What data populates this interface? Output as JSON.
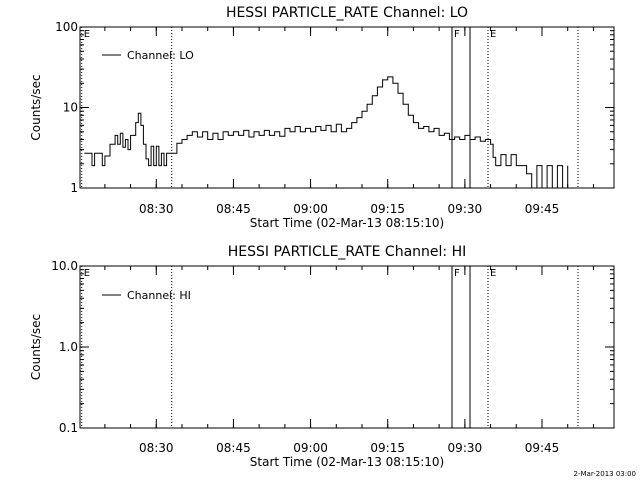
{
  "chart_data": [
    {
      "type": "line",
      "title": "HESSI PARTICLE_RATE Channel: LO",
      "xlabel": "Start Time (02-Mar-13 08:15:10)",
      "ylabel": "Counts/sec",
      "yscale": "log",
      "ylim": [
        1,
        100
      ],
      "xlim": [
        "08:15:10",
        "09:59:00"
      ],
      "x_ticks": [
        "08:30",
        "08:45",
        "09:00",
        "09:15",
        "09:30",
        "09:45"
      ],
      "y_ticks": [
        "1",
        "10",
        "100"
      ],
      "legend": {
        "label": "Channel: LO",
        "placement": "top-left"
      },
      "series": [
        {
          "values": [
            [
              "08:16",
              2.7
            ],
            [
              "08:17",
              2.7
            ],
            [
              "08:17:30",
              1.9
            ],
            [
              "08:18",
              2.7
            ],
            [
              "08:19",
              2.7
            ],
            [
              "08:19:30",
              1.9
            ],
            [
              "08:20",
              2.5
            ],
            [
              "08:21",
              3.5
            ],
            [
              "08:22",
              4.5
            ],
            [
              "08:22:30",
              3.5
            ],
            [
              "08:23",
              4.8
            ],
            [
              "08:23:30",
              3.2
            ],
            [
              "08:24",
              4.0
            ],
            [
              "08:24:30",
              3.0
            ],
            [
              "08:25",
              4.5
            ],
            [
              "08:26",
              6.5
            ],
            [
              "08:26:30",
              8.5
            ],
            [
              "08:27",
              6.0
            ],
            [
              "08:27:30",
              3.5
            ],
            [
              "08:28",
              2.3
            ],
            [
              "08:28:30",
              1.9
            ],
            [
              "08:29",
              3.3
            ],
            [
              "08:29:30",
              1.9
            ],
            [
              "08:30",
              3.3
            ],
            [
              "08:30:30",
              1.9
            ],
            [
              "08:31",
              2.7
            ],
            [
              "08:31:30",
              1.9
            ],
            [
              "08:32",
              2.7
            ],
            [
              "08:33",
              2.7
            ],
            [
              "08:34",
              3.6
            ],
            [
              "08:35",
              4.0
            ],
            [
              "08:36",
              4.5
            ],
            [
              "08:37",
              5.0
            ],
            [
              "08:38",
              4.3
            ],
            [
              "08:39",
              5.0
            ],
            [
              "08:40",
              4.0
            ],
            [
              "08:41",
              4.8
            ],
            [
              "08:42",
              4.0
            ],
            [
              "08:43",
              5.0
            ],
            [
              "08:44",
              4.5
            ],
            [
              "08:45",
              5.0
            ],
            [
              "08:46",
              4.5
            ],
            [
              "08:47",
              5.2
            ],
            [
              "08:48",
              4.3
            ],
            [
              "08:49",
              5.0
            ],
            [
              "08:50",
              4.5
            ],
            [
              "08:51",
              5.2
            ],
            [
              "08:52",
              4.5
            ],
            [
              "08:53",
              5.0
            ],
            [
              "08:54",
              4.4
            ],
            [
              "08:55",
              5.5
            ],
            [
              "08:56",
              5.0
            ],
            [
              "08:57",
              5.8
            ],
            [
              "08:58",
              5.0
            ],
            [
              "08:59",
              5.5
            ],
            [
              "09:00",
              5.0
            ],
            [
              "09:01",
              5.8
            ],
            [
              "09:02",
              5.2
            ],
            [
              "09:03",
              6.0
            ],
            [
              "09:04",
              5.0
            ],
            [
              "09:05",
              6.2
            ],
            [
              "09:06",
              5.0
            ],
            [
              "09:07",
              5.5
            ],
            [
              "09:08",
              6.5
            ],
            [
              "09:09",
              7.5
            ],
            [
              "09:10",
              9.0
            ],
            [
              "09:11",
              11
            ],
            [
              "09:12",
              14
            ],
            [
              "09:13",
              18
            ],
            [
              "09:14",
              22
            ],
            [
              "09:15",
              24
            ],
            [
              "09:16",
              20
            ],
            [
              "09:17",
              15
            ],
            [
              "09:18",
              11
            ],
            [
              "09:19",
              8.0
            ],
            [
              "09:20",
              6.5
            ],
            [
              "09:21",
              5.5
            ],
            [
              "09:22",
              5.8
            ],
            [
              "09:23",
              5.0
            ],
            [
              "09:24",
              5.5
            ],
            [
              "09:25",
              4.5
            ],
            [
              "09:26",
              4.8
            ],
            [
              "09:27",
              4.0
            ],
            [
              "09:28",
              4.3
            ],
            [
              "09:29",
              4.0
            ],
            [
              "09:30",
              4.5
            ],
            [
              "09:31",
              4.0
            ],
            [
              "09:32",
              4.3
            ],
            [
              "09:33",
              3.8
            ],
            [
              "09:34",
              4.0
            ],
            [
              "09:35",
              3.5
            ],
            [
              "09:35:30",
              2.4
            ],
            [
              "09:36",
              1.9
            ],
            [
              "09:37",
              2.6
            ],
            [
              "09:38",
              1.9
            ],
            [
              "09:39",
              2.6
            ],
            [
              "09:40",
              1.9
            ],
            [
              "09:41",
              1.9
            ],
            [
              "09:42",
              1.5
            ],
            [
              "09:43",
              1.0
            ],
            [
              "09:44",
              1.9
            ],
            [
              "09:45",
              1.0
            ],
            [
              "09:46",
              1.9
            ],
            [
              "09:47",
              1.0
            ],
            [
              "09:48",
              1.9
            ],
            [
              "09:49",
              1.0
            ],
            [
              "09:50",
              1.9
            ]
          ]
        }
      ],
      "markers": [
        {
          "time": "08:15:30",
          "label": "E",
          "style": "dotted"
        },
        {
          "time": "08:33:00",
          "label": "",
          "style": "dotted"
        },
        {
          "time": "09:27:30",
          "label": "F",
          "style": "solid"
        },
        {
          "time": "09:31:00",
          "label": "",
          "style": "solid"
        },
        {
          "time": "09:34:30",
          "label": "E",
          "style": "dotted"
        },
        {
          "time": "09:52:00",
          "label": "",
          "style": "dotted"
        }
      ],
      "grid": false
    },
    {
      "type": "line",
      "title": "HESSI PARTICLE_RATE Channel: HI",
      "xlabel": "Start Time (02-Mar-13 08:15:10)",
      "ylabel": "Counts/sec",
      "yscale": "log",
      "ylim": [
        0.1,
        10
      ],
      "xlim": [
        "08:15:10",
        "09:59:00"
      ],
      "x_ticks": [
        "08:30",
        "08:45",
        "09:00",
        "09:15",
        "09:30",
        "09:45"
      ],
      "y_ticks": [
        "0.1",
        "1.0",
        "10.0"
      ],
      "legend": {
        "label": "Channel: HI",
        "placement": "top-left"
      },
      "series": [
        {
          "values": []
        }
      ],
      "markers": [
        {
          "time": "08:15:30",
          "label": "E",
          "style": "dotted"
        },
        {
          "time": "08:33:00",
          "label": "",
          "style": "dotted"
        },
        {
          "time": "09:27:30",
          "label": "F",
          "style": "solid"
        },
        {
          "time": "09:31:00",
          "label": "",
          "style": "solid"
        },
        {
          "time": "09:34:30",
          "label": "E",
          "style": "dotted"
        },
        {
          "time": "09:52:00",
          "label": "",
          "style": "dotted"
        }
      ],
      "grid": false
    }
  ],
  "footer": {
    "timestamp": "2-Mar-2013 03:00"
  }
}
